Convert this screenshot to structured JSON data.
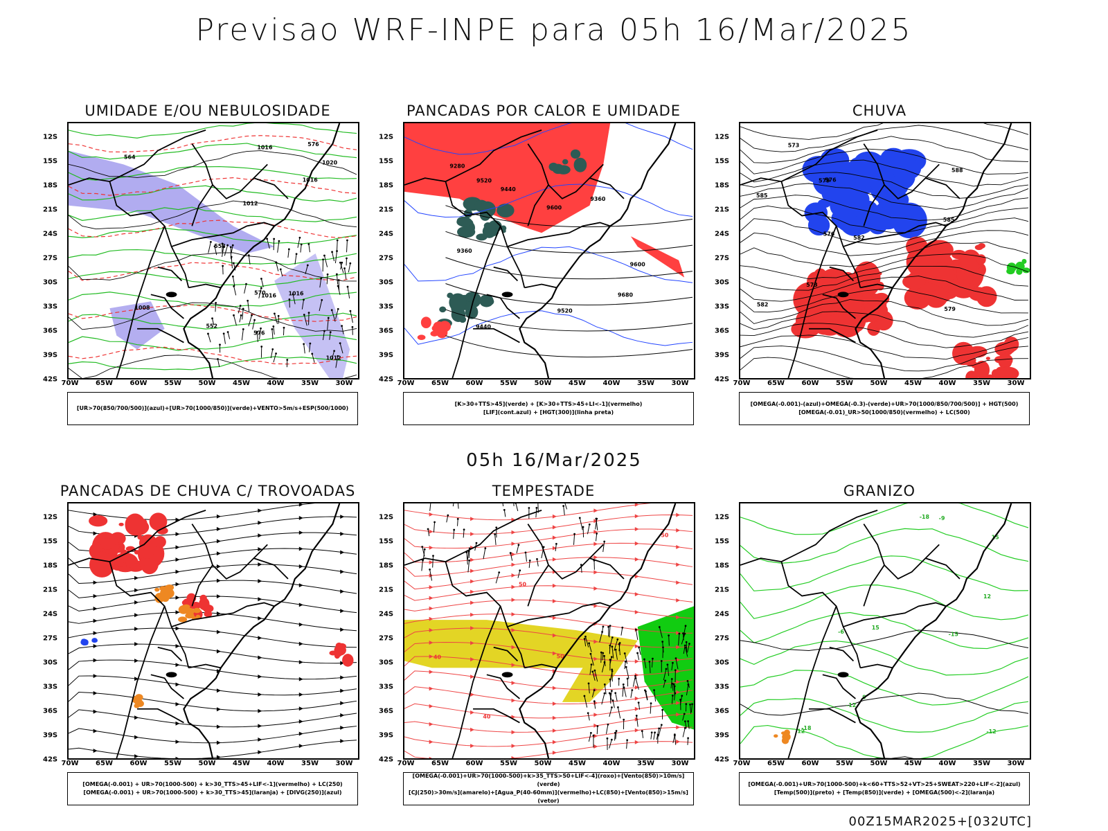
{
  "header": {
    "title": "Previsao WRF-INPE  para 05h 16/Mar/2025"
  },
  "middle": {
    "title": "05h 16/Mar/2025"
  },
  "footer": {
    "run": "00Z15MAR2025+[032UTC]"
  },
  "axes": {
    "lat_labels": [
      "12S",
      "15S",
      "18S",
      "21S",
      "24S",
      "27S",
      "30S",
      "33S",
      "36S",
      "39S",
      "42S"
    ],
    "lon_labels": [
      "70W",
      "65W",
      "60W",
      "55W",
      "50W",
      "45W",
      "40W",
      "35W",
      "30W"
    ]
  },
  "panels": [
    {
      "id": "umidade",
      "title": "UMIDADE E/OU NEBULOSIDADE",
      "legend": [
        "[UR>70(850/700/500)](azul)+[UR>70(1000/850)](verde)+VENTO>5m/s+ESP(500/1000)"
      ],
      "contour_labels": [
        "1012",
        "1016",
        "1016",
        "1020",
        "1016",
        "1012",
        "1016",
        "1008",
        "576",
        "576",
        "570",
        "564",
        "558",
        "552"
      ]
    },
    {
      "id": "pancadas-calor",
      "title": "PANCADAS POR CALOR E UMIDADE",
      "legend": [
        "[K>30+TTS>45](verde) + [K>30+TTS>45+LI<-1](vermelho)",
        "[LIF](cont.azul) + [HGT(300)](linha preta)"
      ],
      "contour_labels": [
        "9680",
        "9600",
        "9520",
        "9440",
        "9360",
        "9280",
        "9600",
        "9520",
        "9440",
        "9360"
      ]
    },
    {
      "id": "chuva",
      "title": "CHUVA",
      "legend": [
        "[OMEGA(-0.001)-(azul)+OMEGA(-0.3)-(verde)+UR>70(1000/850/700/500)] + HGT(500)",
        "[OMEGA(-0.01)_UR>50(1000/850)(vermelho) + LC(500)"
      ],
      "contour_labels": [
        "585",
        "582",
        "579",
        "576",
        "573",
        "588",
        "585",
        "582",
        "579",
        "576",
        "573"
      ]
    },
    {
      "id": "trovoadas",
      "title": "PANCADAS DE CHUVA C/ TROVOADAS",
      "legend": [
        "[OMEGA(-0.001) + UR>70(1000-500) + k>30_TTS>45+LIF<-1](vermelho) + LC(250)",
        "[OMEGA(-0.001) + UR>70(1000-500) + k>30_TTS>45](laranja) + [DIVG(250)](azul)"
      ],
      "contour_labels": []
    },
    {
      "id": "tempestade",
      "title": "TEMPESTADE",
      "legend": [
        "[OMEGA(-0.001)+UR>70(1000-500)+k>35_TTS>50+LIF<-4](roxo)+[Vento(850)>10m/s](verde)",
        "[CJ(250)>30m/s](amarelo)+[Agua_P(40-60mm)](vermelho)+LC(850)+[Vento(850)>15m/s](vetor)"
      ],
      "contour_labels": [
        "50",
        "40",
        "50",
        "50",
        "40"
      ]
    },
    {
      "id": "granizo",
      "title": "GRANIZO",
      "legend": [
        "[OMEGA(-0.001)+UR>70(1000-500)+k<60+TTS>52+VT>25+SWEAT>220+LIF<-2](azul)",
        "[Temp(500)](preto) + [Temp(850)](verde) + [OMEGA(500)<-2](laranja)"
      ],
      "contour_labels": [
        "15",
        "15",
        "-6",
        "-9",
        "-12",
        "-12",
        "-15",
        "-18",
        "-18",
        "12",
        "12",
        "9"
      ]
    }
  ]
}
